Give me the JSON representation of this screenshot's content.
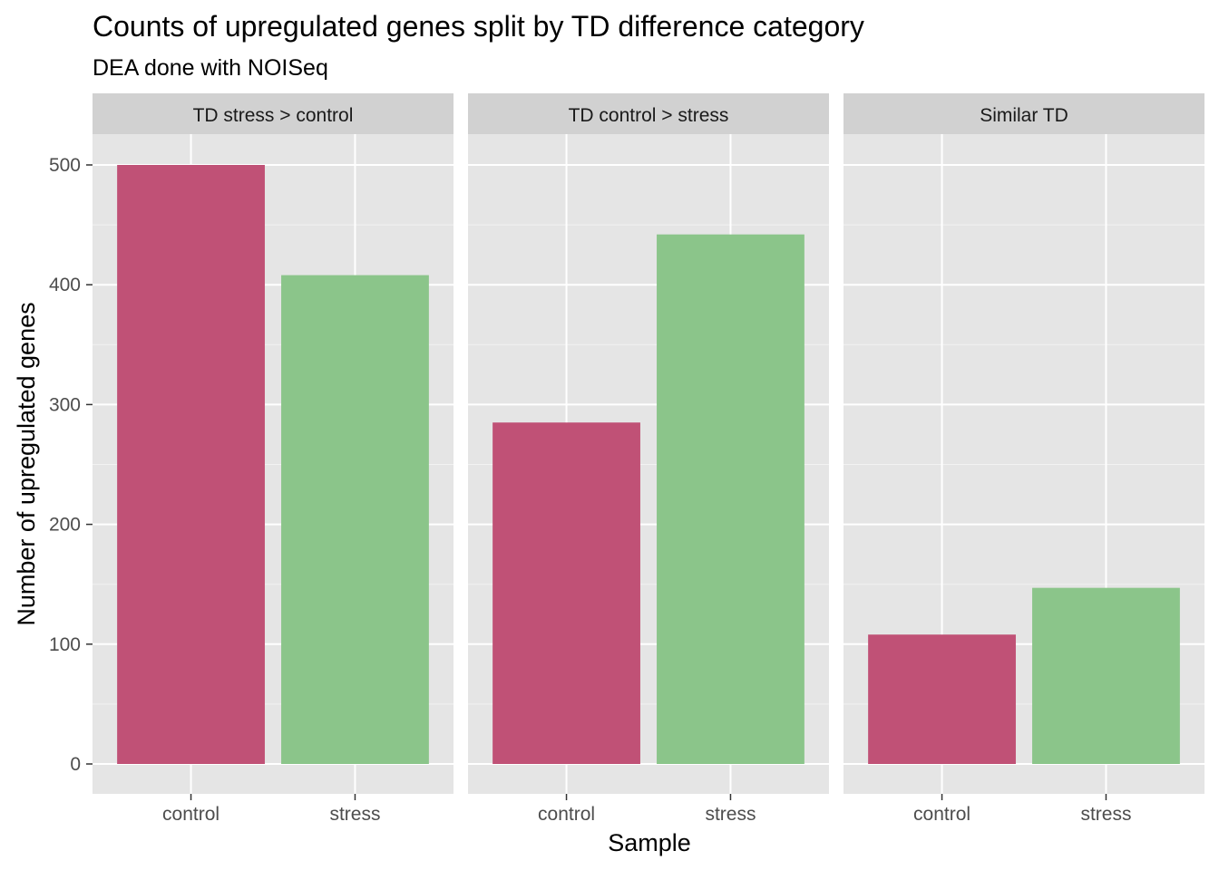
{
  "chart_data": {
    "type": "bar",
    "title": "Counts of upregulated genes split by TD difference category",
    "subtitle": "DEA done with NOISeq",
    "xlabel": "Sample",
    "ylabel": "Number of upregulated genes",
    "ylim": [
      0,
      550
    ],
    "yticks": [
      0,
      100,
      200,
      300,
      400,
      500
    ],
    "grid": true,
    "categories": [
      "control",
      "stress"
    ],
    "colors": {
      "control": "#C05176",
      "stress": "#8BC58A"
    },
    "panel_background": "#E5E5E5",
    "strip_background": "#D1D1D1",
    "facets": [
      {
        "label": "TD stress > control",
        "values": [
          500,
          408
        ]
      },
      {
        "label": "TD control > stress",
        "values": [
          285,
          442
        ]
      },
      {
        "label": "Similar TD",
        "values": [
          108,
          147
        ]
      }
    ]
  }
}
